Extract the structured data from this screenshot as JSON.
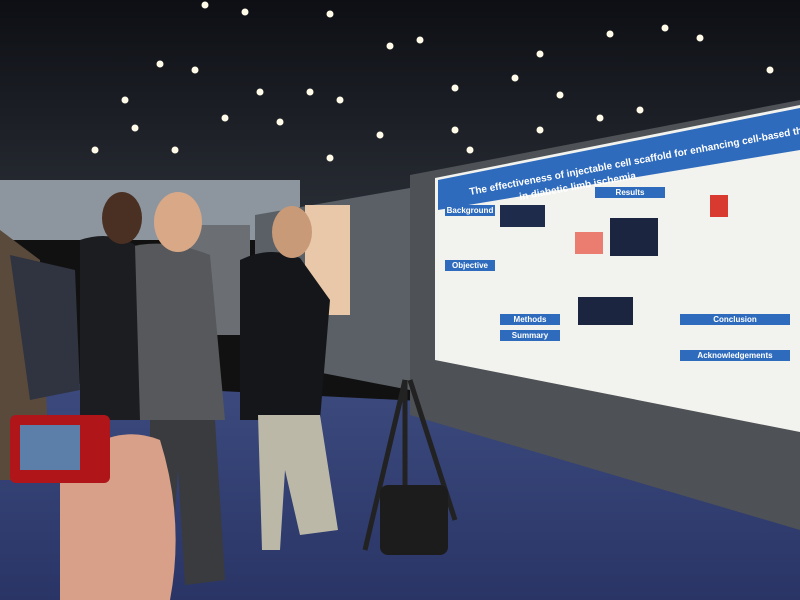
{
  "poster": {
    "title": "The effectiveness of injectable cell scaffold for enhancing cell-based therapeutic angiogenesis",
    "subtitle": "in diabetic limb ischemia",
    "sections": [
      "Results",
      "Background",
      "Objective",
      "Methods",
      "Summary",
      "Conclusion",
      "Acknowledgements"
    ]
  }
}
